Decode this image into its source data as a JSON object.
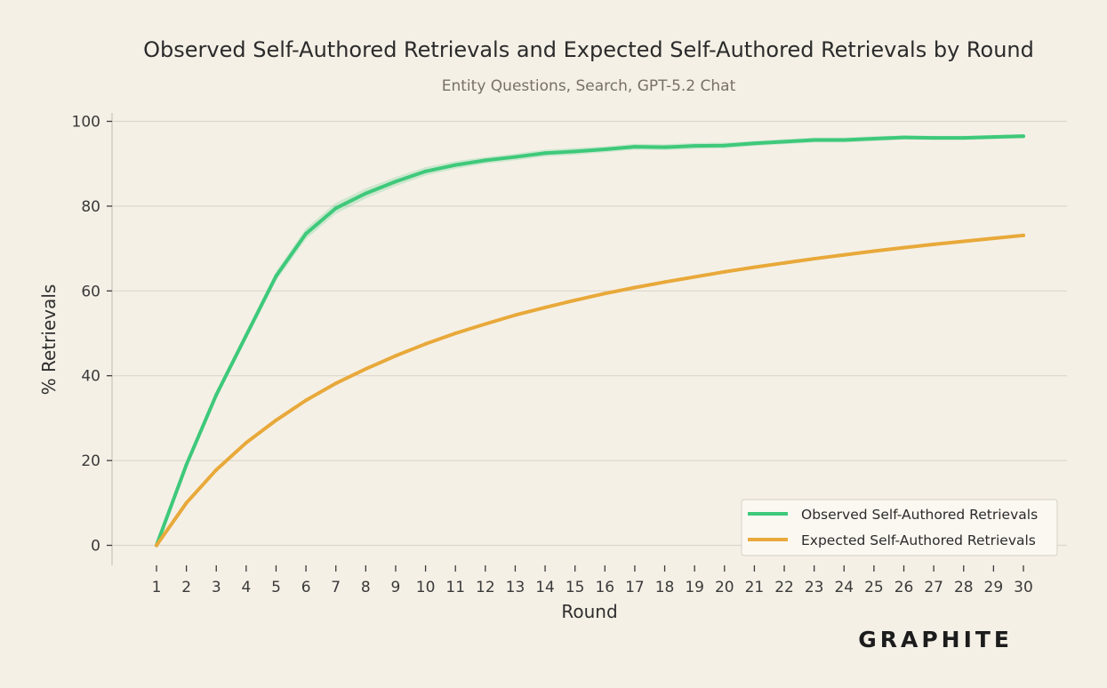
{
  "logo": "GRAPHITE",
  "chart_data": {
    "type": "line",
    "title": "Observed Self-Authored Retrievals and Expected Self-Authored Retrievals by Round",
    "subtitle": "Entity Questions, Search, GPT-5.2 Chat",
    "xlabel": "Round",
    "ylabel": "% Retrievals",
    "x": [
      1,
      2,
      3,
      4,
      5,
      6,
      7,
      8,
      9,
      10,
      11,
      12,
      13,
      14,
      15,
      16,
      17,
      18,
      19,
      20,
      21,
      22,
      23,
      24,
      25,
      26,
      27,
      28,
      29,
      30
    ],
    "xlim": [
      1,
      30
    ],
    "ylim": [
      0,
      100
    ],
    "yticks": [
      0,
      20,
      40,
      60,
      80,
      100
    ],
    "grid": "horizontal",
    "legend_position": "bottom-right",
    "series": [
      {
        "name": "Observed Self-Authored Retrievals",
        "color": "#3ec97a",
        "band_color": "#3ec97a",
        "values": [
          0,
          19,
          35.5,
          49.5,
          63.5,
          73.5,
          79.5,
          83,
          85.8,
          88.2,
          89.7,
          90.8,
          91.6,
          92.5,
          92.9,
          93.4,
          94.0,
          93.9,
          94.2,
          94.3,
          94.8,
          95.2,
          95.6,
          95.6,
          95.9,
          96.2,
          96.1,
          96.1,
          96.3,
          96.5
        ],
        "lower": [
          0,
          18.3,
          34.6,
          48.5,
          62.4,
          72.2,
          78.2,
          81.8,
          84.7,
          87.2,
          88.8,
          90.0,
          90.8,
          91.7,
          92.1,
          92.7,
          93.3,
          93.2,
          93.5,
          93.6,
          94.2,
          94.6,
          95.0,
          95.0,
          95.3,
          95.7,
          95.6,
          95.6,
          95.8,
          96.0
        ],
        "upper": [
          0,
          19.7,
          36.4,
          50.5,
          64.6,
          74.8,
          80.8,
          84.2,
          86.9,
          89.2,
          90.6,
          91.6,
          92.4,
          93.3,
          93.7,
          94.1,
          94.7,
          94.6,
          94.9,
          95.0,
          95.4,
          95.8,
          96.2,
          96.2,
          96.5,
          96.7,
          96.6,
          96.6,
          96.8,
          97.0
        ]
      },
      {
        "name": "Expected Self-Authored Retrievals",
        "color": "#e8a93a",
        "values": [
          0,
          10,
          17.8,
          24.2,
          29.5,
          34.2,
          38.2,
          41.6,
          44.7,
          47.5,
          50.0,
          52.2,
          54.3,
          56.1,
          57.8,
          59.4,
          60.8,
          62.1,
          63.3,
          64.5,
          65.6,
          66.6,
          67.6,
          68.5,
          69.4,
          70.2,
          71.0,
          71.7,
          72.4,
          73.1
        ]
      }
    ]
  }
}
